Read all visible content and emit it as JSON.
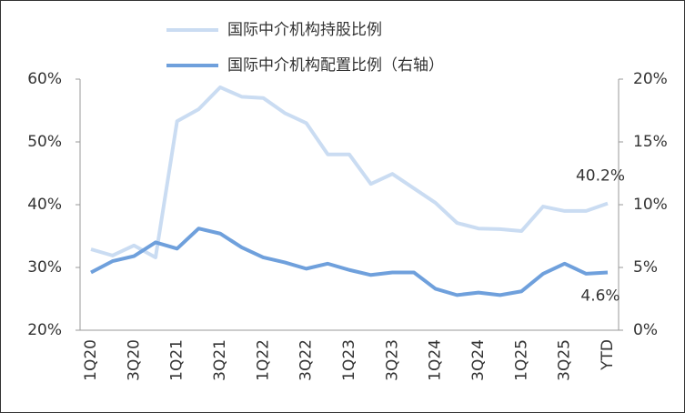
{
  "chart_data": {
    "type": "line",
    "categories": [
      "1Q20",
      null,
      "3Q20",
      null,
      "1Q21",
      null,
      "3Q21",
      null,
      "1Q22",
      null,
      "3Q22",
      null,
      "1Q23",
      null,
      "3Q23",
      null,
      "1Q24",
      null,
      "3Q24",
      null,
      "1Q25",
      null,
      "3Q25",
      null,
      "YTD"
    ],
    "series": [
      {
        "name": "国际中介机构持股比例",
        "color": "#cadcf2",
        "axis": "y",
        "values": [
          32.9,
          31.9,
          33.5,
          31.6,
          53.3,
          55.2,
          58.7,
          57.2,
          57.0,
          54.6,
          53.0,
          48.0,
          48.0,
          43.3,
          44.9,
          42.6,
          40.3,
          37.1,
          36.2,
          36.1,
          35.8,
          39.7,
          39.0,
          39.0,
          40.2
        ],
        "value_labels": [
          null,
          null,
          null,
          null,
          null,
          null,
          null,
          null,
          null,
          null,
          null,
          null,
          null,
          null,
          null,
          null,
          null,
          null,
          null,
          null,
          null,
          null,
          null,
          null,
          "40.2%"
        ]
      },
      {
        "name": "国际中介机构配置比例（右轴）",
        "color": "#6fa0dc",
        "axis": "y2",
        "values": [
          4.6,
          5.5,
          5.9,
          7.0,
          6.5,
          8.1,
          7.7,
          6.6,
          5.8,
          5.4,
          4.9,
          5.3,
          4.8,
          4.4,
          4.6,
          4.6,
          3.3,
          2.8,
          3.0,
          2.8,
          3.1,
          4.5,
          5.3,
          4.5,
          4.6
        ],
        "value_labels": [
          null,
          null,
          null,
          null,
          null,
          null,
          null,
          null,
          null,
          null,
          null,
          null,
          null,
          null,
          null,
          null,
          null,
          null,
          null,
          null,
          null,
          null,
          null,
          null,
          "4.6%"
        ]
      }
    ],
    "ylim": [
      20,
      60
    ],
    "yticks": [
      {
        "value": 20,
        "label": "20%"
      },
      {
        "value": 30,
        "label": "30%"
      },
      {
        "value": 40,
        "label": "40%"
      },
      {
        "value": 50,
        "label": "50%"
      },
      {
        "value": 60,
        "label": "60%"
      }
    ],
    "y2lim": [
      0,
      20
    ],
    "y2ticks": [
      {
        "value": 0,
        "label": "0%"
      },
      {
        "value": 5,
        "label": "5%"
      },
      {
        "value": 10,
        "label": "10%"
      },
      {
        "value": 15,
        "label": "15%"
      },
      {
        "value": 20,
        "label": "20%"
      }
    ],
    "grid": false,
    "legend": "top"
  }
}
